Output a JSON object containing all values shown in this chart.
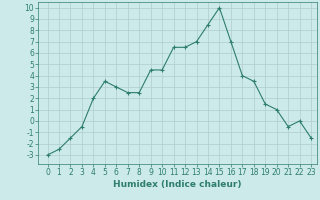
{
  "x": [
    0,
    1,
    2,
    3,
    4,
    5,
    6,
    7,
    8,
    9,
    10,
    11,
    12,
    13,
    14,
    15,
    16,
    17,
    18,
    19,
    20,
    21,
    22,
    23
  ],
  "y": [
    -3,
    -2.5,
    -1.5,
    -0.5,
    2,
    3.5,
    3,
    2.5,
    2.5,
    4.5,
    4.5,
    6.5,
    6.5,
    7,
    8.5,
    10,
    7,
    4,
    3.5,
    1.5,
    1,
    -0.5,
    0,
    -1.5
  ],
  "line_color": "#2e7d6e",
  "marker": "+",
  "marker_size": 3,
  "linewidth": 0.8,
  "bg_color": "#cceaea",
  "grid_color": "#b0cccc",
  "xlabel": "Humidex (Indice chaleur)",
  "xlabel_fontsize": 6.5,
  "ylabel_ticks": [
    -3,
    -2,
    -1,
    0,
    1,
    2,
    3,
    4,
    5,
    6,
    7,
    8,
    9,
    10
  ],
  "ylim": [
    -3.8,
    10.5
  ],
  "xlim": [
    -0.8,
    23.5
  ],
  "tick_fontsize": 5.5
}
